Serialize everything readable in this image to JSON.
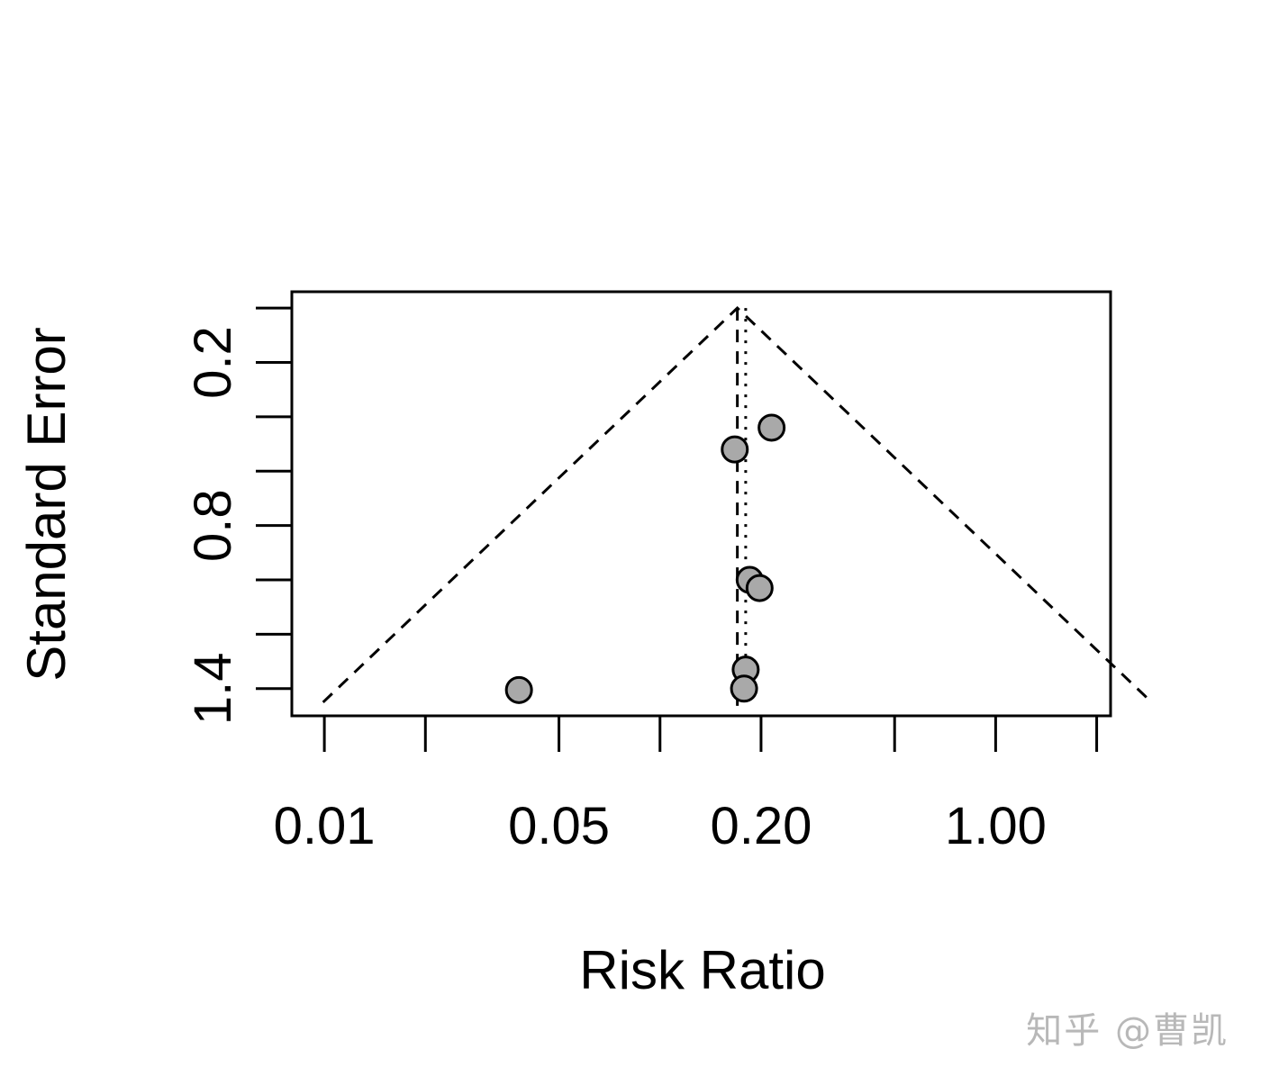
{
  "chart_data": {
    "type": "scatter",
    "subtype": "funnel",
    "title": "",
    "xlabel": "Risk Ratio",
    "ylabel": "Standard Error",
    "x_scale": "log",
    "y_reversed": true,
    "xlim": [
      0.008,
      2.2
    ],
    "ylim": [
      -0.06,
      1.5
    ],
    "x_ticks": [
      0.01,
      0.02,
      0.05,
      0.1,
      0.2,
      0.5,
      1.0,
      2.0
    ],
    "x_tick_labels": [
      "0.01",
      "",
      "0.05",
      "",
      "0.20",
      "",
      "1.00",
      ""
    ],
    "y_ticks": [
      0,
      0.2,
      0.4,
      0.6,
      0.8,
      1.0,
      1.2,
      1.4
    ],
    "y_tick_labels": [
      "",
      "0.2",
      "",
      "",
      "0.8",
      "",
      "",
      "1.4"
    ],
    "pooled_estimate": 0.17,
    "reference_line": 0.18,
    "points": [
      {
        "x": 0.215,
        "y": 0.44
      },
      {
        "x": 0.167,
        "y": 0.52
      },
      {
        "x": 0.185,
        "y": 1.0
      },
      {
        "x": 0.198,
        "y": 1.03
      },
      {
        "x": 0.18,
        "y": 1.33
      },
      {
        "x": 0.178,
        "y": 1.4
      },
      {
        "x": 0.038,
        "y": 1.405
      }
    ],
    "point_fill": "#a9a9a9",
    "point_stroke": "#000000"
  },
  "watermark": "知乎 @曹凯"
}
